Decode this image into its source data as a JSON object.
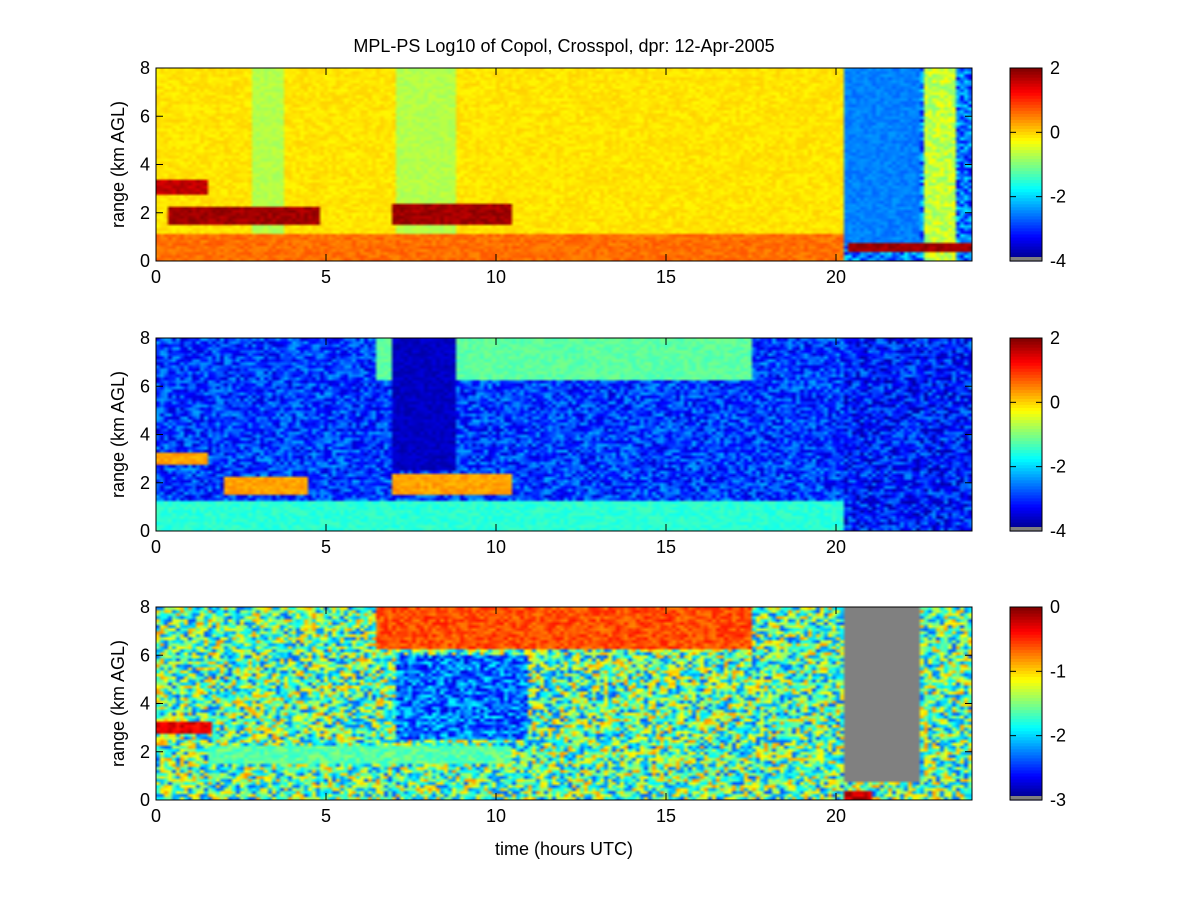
{
  "figure": {
    "title": "MPL-PS Log10 of Copol, Crosspol, dpr: 12-Apr-2005",
    "xlabel": "time (hours UTC)"
  },
  "chart_data": [
    {
      "type": "heatmap",
      "panel": "copol",
      "xlim": [
        0,
        24
      ],
      "ylim": [
        0,
        8
      ],
      "xticks": [
        "0",
        "5",
        "10",
        "15",
        "20"
      ],
      "yticks": [
        "0",
        "2",
        "4",
        "6",
        "8"
      ],
      "ylabel": "range (km AGL)",
      "colorbar": {
        "range": [
          -4,
          2
        ],
        "ticks": [
          "-4",
          "-2",
          "0",
          "2"
        ],
        "colormap": "jet"
      },
      "features": [
        {
          "what": "boundary layer",
          "x": [
            0,
            20.2
          ],
          "y": [
            0,
            1.1
          ],
          "value": 0.6
        },
        {
          "what": "elevated layer",
          "x": [
            0,
            1.5
          ],
          "y": [
            2.8,
            3.4
          ],
          "value": 1.6
        },
        {
          "what": "cloud",
          "x": [
            0.3,
            4.8
          ],
          "y": [
            1.5,
            2.2
          ],
          "value": 1.8
        },
        {
          "what": "cloud",
          "x": [
            7,
            10.5
          ],
          "y": [
            1.5,
            2.4
          ],
          "value": 1.8
        },
        {
          "what": "cloud base",
          "x": [
            20.3,
            24
          ],
          "y": [
            0.4,
            0.8
          ],
          "value": 1.8
        },
        {
          "what": "noise region",
          "x": [
            20.2,
            22.5
          ],
          "y": [
            0.8,
            8
          ],
          "value": -2.5
        }
      ]
    },
    {
      "type": "heatmap",
      "panel": "crosspol",
      "xlim": [
        0,
        24
      ],
      "ylim": [
        0,
        8
      ],
      "xticks": [
        "0",
        "5",
        "10",
        "15",
        "20"
      ],
      "yticks": [
        "0",
        "2",
        "4",
        "6",
        "8"
      ],
      "ylabel": "range (km AGL)",
      "colorbar": {
        "range": [
          -4,
          2
        ],
        "ticks": [
          "-4",
          "-2",
          "0",
          "2"
        ],
        "colormap": "jet"
      },
      "features": [
        {
          "what": "boundary layer",
          "x": [
            0,
            20.2
          ],
          "y": [
            0,
            1.2
          ],
          "value": -1.5
        },
        {
          "what": "elevated layer",
          "x": [
            0,
            1.5
          ],
          "y": [
            2.8,
            3.3
          ],
          "value": 0.3
        },
        {
          "what": "cloud",
          "x": [
            2,
            4.5
          ],
          "y": [
            1.5,
            2.3
          ],
          "value": 0.3
        },
        {
          "what": "cloud",
          "x": [
            7,
            10.5
          ],
          "y": [
            1.5,
            2.4
          ],
          "value": 0.3
        },
        {
          "what": "cirrus",
          "x": [
            6.5,
            17.5
          ],
          "y": [
            6.3,
            8
          ],
          "value": -1.2
        },
        {
          "what": "low column",
          "x": [
            7,
            8.8
          ],
          "y": [
            2.5,
            8
          ],
          "value": -3.6
        }
      ]
    },
    {
      "type": "heatmap",
      "panel": "dpr",
      "xlim": [
        0,
        24
      ],
      "ylim": [
        0,
        8
      ],
      "xticks": [
        "0",
        "5",
        "10",
        "15",
        "20"
      ],
      "yticks": [
        "0",
        "2",
        "4",
        "6",
        "8"
      ],
      "ylabel": "range (km AGL)",
      "colorbar": {
        "range": [
          -3,
          0
        ],
        "ticks": [
          "-3",
          "-2",
          "-1",
          "0"
        ],
        "colormap": "jet"
      },
      "features": [
        {
          "what": "elevated layer",
          "x": [
            0,
            1.6
          ],
          "y": [
            2.8,
            3.3
          ],
          "value": -0.3
        },
        {
          "what": "cirrus",
          "x": [
            6.5,
            17.5
          ],
          "y": [
            6.3,
            8
          ],
          "value": -0.6
        },
        {
          "what": "cloud",
          "x": [
            1.5,
            10.5
          ],
          "y": [
            1.5,
            2.3
          ],
          "value": -1.6
        },
        {
          "what": "no data (gray)",
          "x": [
            20.2,
            22.5
          ],
          "y": [
            0.8,
            8
          ],
          "value": null
        },
        {
          "what": "surface layer",
          "x": [
            20.2,
            21
          ],
          "y": [
            0,
            0.4
          ],
          "value": -0.2
        }
      ]
    }
  ]
}
